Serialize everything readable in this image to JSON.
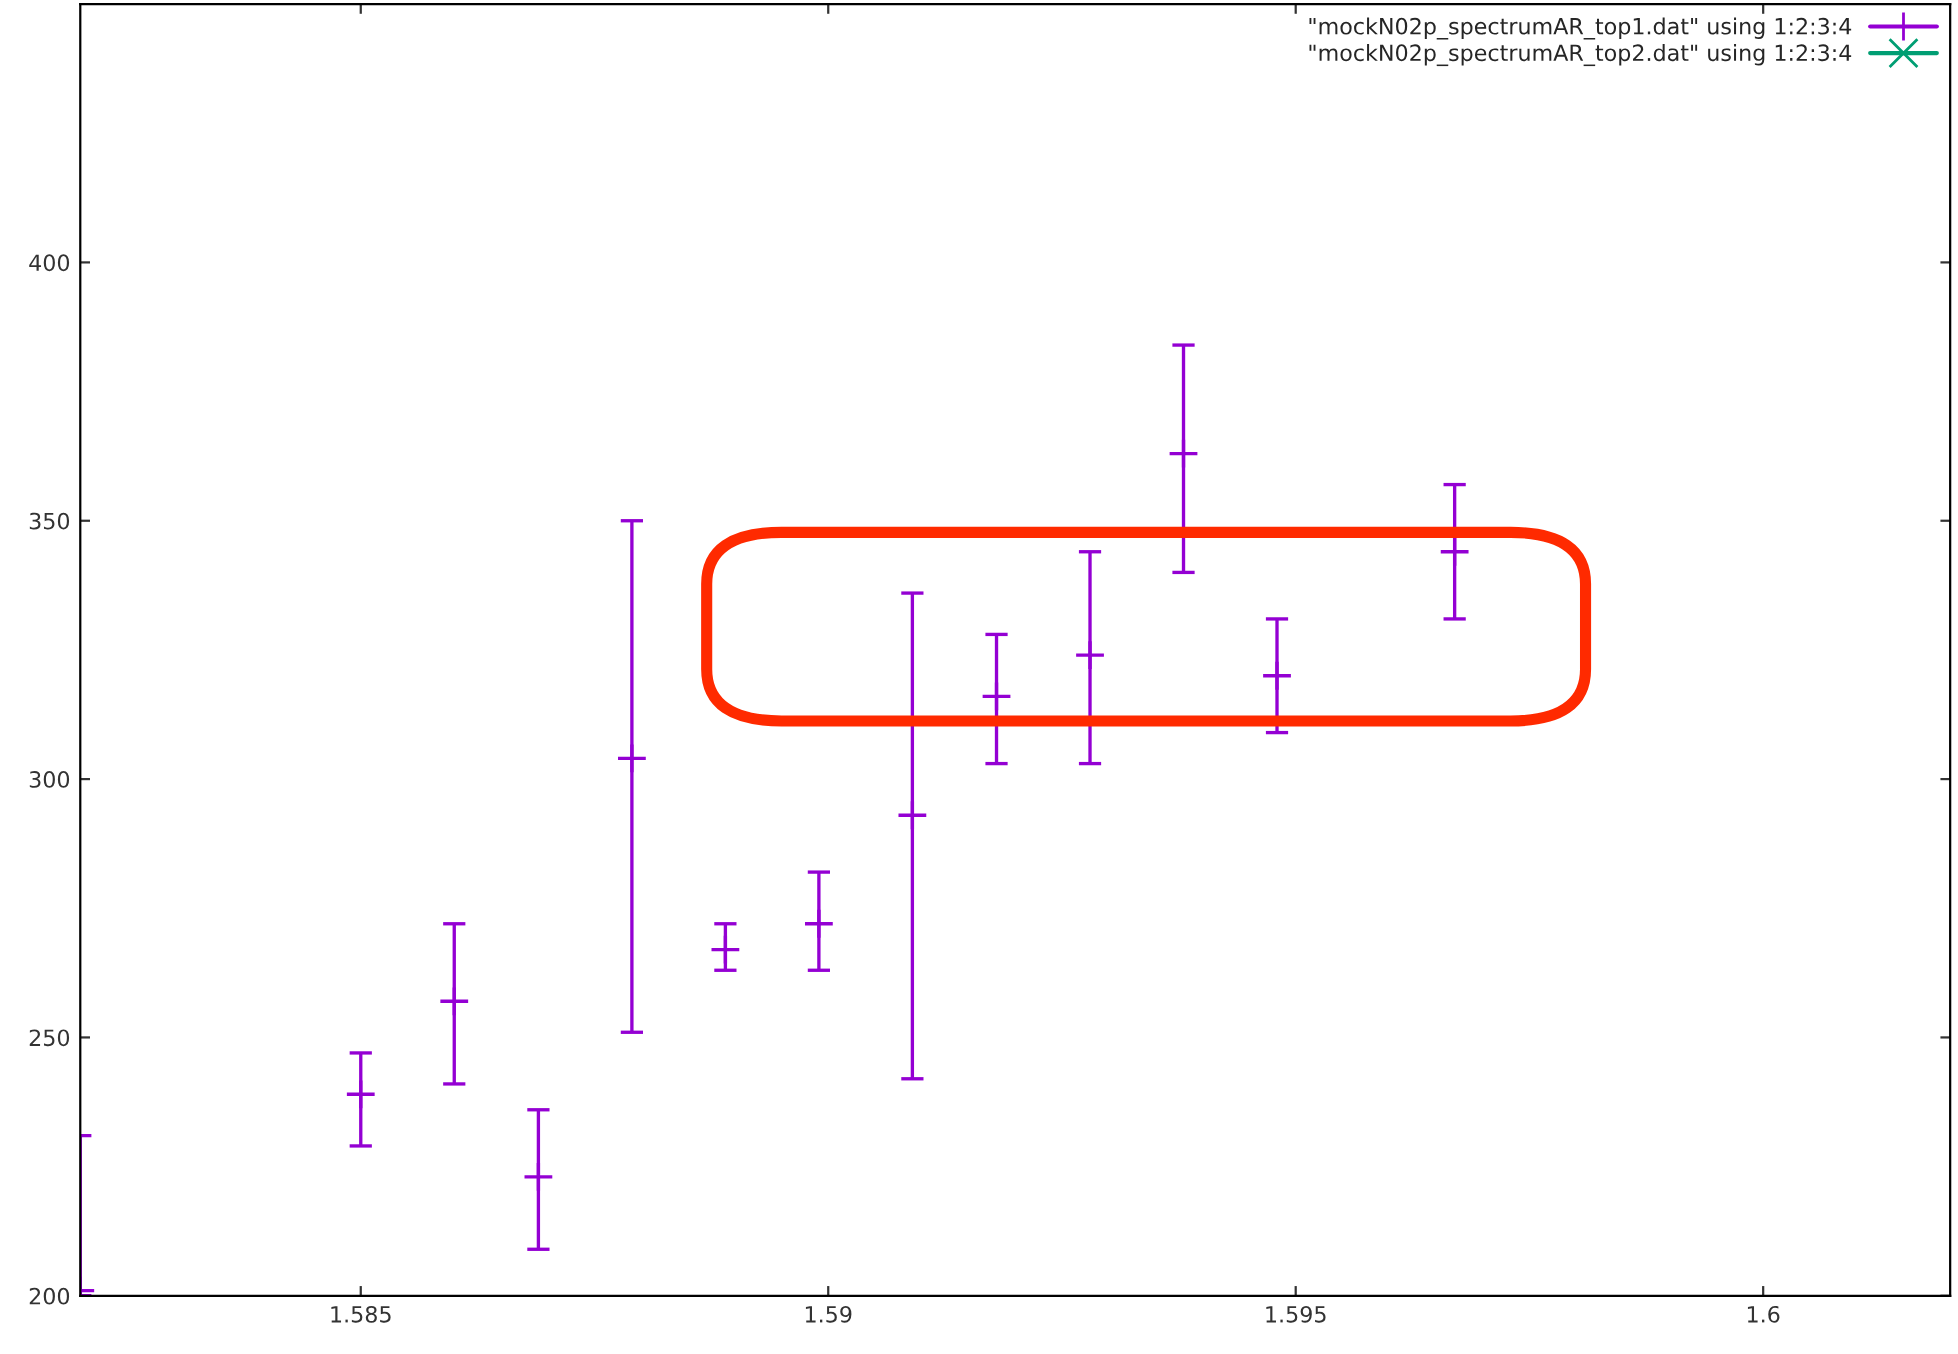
{
  "chart_data": {
    "type": "scatter",
    "x": [
      1.582,
      1.585,
      1.586,
      1.5869,
      1.5879,
      1.5889,
      1.5899,
      1.5909,
      1.5918,
      1.5928,
      1.5938,
      1.5948,
      1.5967
    ],
    "series": [
      {
        "name": "\"mockN02p_spectrumAR_top1.dat\" using 1:2:3:4",
        "color": "#9400d3",
        "marker": "plus",
        "values": [
          201,
          239,
          257,
          223,
          304,
          267,
          272,
          293,
          316,
          324,
          363,
          320,
          344
        ],
        "errors": [
          [
            200,
            231
          ],
          [
            229,
            247
          ],
          [
            241,
            272
          ],
          [
            209,
            236
          ],
          [
            251,
            350
          ],
          [
            263,
            272
          ],
          [
            263,
            282
          ],
          [
            242,
            336
          ],
          [
            303,
            328
          ],
          [
            303,
            344
          ],
          [
            340,
            384
          ],
          [
            309,
            331
          ],
          [
            331,
            357
          ]
        ]
      },
      {
        "name": "\"mockN02p_spectrumAR_top2.dat\" using 1:2:3:4",
        "color": "#009e73",
        "marker": "cross",
        "values": [
          null,
          null,
          null,
          null,
          null,
          null,
          null,
          null,
          null,
          null,
          null,
          null,
          null
        ]
      }
    ],
    "xlim": [
      1.582,
      1.602
    ],
    "xticks": [
      1.585,
      1.59,
      1.595,
      1.6
    ],
    "ylim": [
      200,
      450
    ],
    "yticks": [
      200,
      250,
      300,
      350,
      400
    ],
    "grid": false,
    "legend": "top right"
  }
}
